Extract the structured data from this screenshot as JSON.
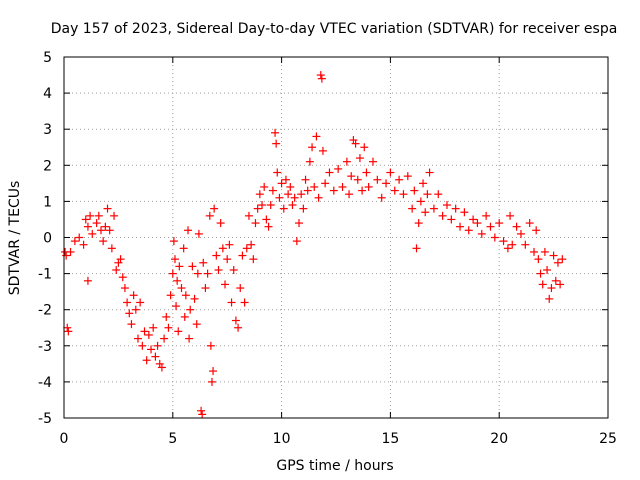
{
  "chart_data": {
    "type": "scatter",
    "title": "Day 157 of 2023, Sidereal Day-to-day VTEC variation (SDTVAR) for receiver espa",
    "xlabel": "GPS time / hours",
    "ylabel": "SDTVAR / TECUs",
    "xlim": [
      0,
      25
    ],
    "ylim": [
      -5,
      5
    ],
    "x_ticks": [
      0,
      5,
      10,
      15,
      20,
      25
    ],
    "y_ticks": [
      -5,
      -4,
      -3,
      -2,
      -1,
      0,
      1,
      2,
      3,
      4,
      5
    ],
    "x_tick_labels": [
      "0",
      "5",
      "10",
      "15",
      "20",
      "25"
    ],
    "y_tick_labels": [
      "-5",
      "-4",
      "-3",
      "-2",
      "-1",
      "0",
      "1",
      "2",
      "3",
      "4",
      "5"
    ],
    "grid": true,
    "marker": "+",
    "series": [
      {
        "name": "SDTVAR",
        "color": "#ff0000",
        "points": [
          [
            0.05,
            -0.4
          ],
          [
            0.1,
            -0.5
          ],
          [
            0.15,
            -2.5
          ],
          [
            0.2,
            -2.6
          ],
          [
            0.3,
            -0.4
          ],
          [
            0.5,
            -0.1
          ],
          [
            0.7,
            0.0
          ],
          [
            0.9,
            -0.2
          ],
          [
            1.0,
            0.5
          ],
          [
            1.1,
            0.3
          ],
          [
            1.1,
            -1.2
          ],
          [
            1.2,
            0.6
          ],
          [
            1.3,
            0.1
          ],
          [
            1.5,
            0.4
          ],
          [
            1.6,
            0.6
          ],
          [
            1.7,
            0.2
          ],
          [
            1.8,
            -0.1
          ],
          [
            1.9,
            0.3
          ],
          [
            2.0,
            0.8
          ],
          [
            2.1,
            0.2
          ],
          [
            2.2,
            -0.3
          ],
          [
            2.3,
            0.6
          ],
          [
            2.4,
            -0.9
          ],
          [
            2.5,
            -0.7
          ],
          [
            2.6,
            -0.6
          ],
          [
            2.7,
            -1.1
          ],
          [
            2.8,
            -1.4
          ],
          [
            2.9,
            -1.8
          ],
          [
            3.0,
            -2.1
          ],
          [
            3.1,
            -2.4
          ],
          [
            3.2,
            -1.6
          ],
          [
            3.3,
            -2.0
          ],
          [
            3.4,
            -2.8
          ],
          [
            3.5,
            -1.8
          ],
          [
            3.6,
            -3.0
          ],
          [
            3.7,
            -2.6
          ],
          [
            3.8,
            -3.4
          ],
          [
            3.9,
            -2.7
          ],
          [
            4.0,
            -3.1
          ],
          [
            4.1,
            -2.5
          ],
          [
            4.2,
            -3.3
          ],
          [
            4.3,
            -3.0
          ],
          [
            4.4,
            -3.5
          ],
          [
            4.5,
            -3.6
          ],
          [
            4.6,
            -2.8
          ],
          [
            4.7,
            -2.2
          ],
          [
            4.8,
            -2.5
          ],
          [
            4.9,
            -1.6
          ],
          [
            5.0,
            -1.0
          ],
          [
            5.05,
            -0.1
          ],
          [
            5.1,
            -0.6
          ],
          [
            5.15,
            -1.9
          ],
          [
            5.2,
            -1.2
          ],
          [
            5.25,
            -2.6
          ],
          [
            5.3,
            -0.8
          ],
          [
            5.4,
            -1.4
          ],
          [
            5.5,
            -0.3
          ],
          [
            5.55,
            -2.2
          ],
          [
            5.6,
            -1.6
          ],
          [
            5.7,
            0.2
          ],
          [
            5.75,
            -2.8
          ],
          [
            5.8,
            -2.0
          ],
          [
            5.9,
            -0.8
          ],
          [
            6.0,
            -1.7
          ],
          [
            6.1,
            -2.4
          ],
          [
            6.15,
            -1.0
          ],
          [
            6.2,
            0.1
          ],
          [
            6.3,
            -4.8
          ],
          [
            6.35,
            -4.9
          ],
          [
            6.4,
            -0.7
          ],
          [
            6.5,
            -1.4
          ],
          [
            6.6,
            -1.0
          ],
          [
            6.7,
            0.6
          ],
          [
            6.75,
            -3.0
          ],
          [
            6.8,
            -4.0
          ],
          [
            6.85,
            -3.7
          ],
          [
            6.9,
            0.8
          ],
          [
            7.0,
            -0.5
          ],
          [
            7.1,
            -0.9
          ],
          [
            7.2,
            0.4
          ],
          [
            7.3,
            -0.3
          ],
          [
            7.4,
            -1.3
          ],
          [
            7.5,
            -0.6
          ],
          [
            7.6,
            -0.2
          ],
          [
            7.7,
            -1.8
          ],
          [
            7.8,
            -0.9
          ],
          [
            7.9,
            -2.3
          ],
          [
            8.0,
            -2.5
          ],
          [
            8.1,
            -1.4
          ],
          [
            8.2,
            -0.5
          ],
          [
            8.3,
            -1.8
          ],
          [
            8.4,
            -0.3
          ],
          [
            8.5,
            0.6
          ],
          [
            8.6,
            -0.2
          ],
          [
            8.7,
            -0.6
          ],
          [
            8.8,
            0.4
          ],
          [
            8.9,
            0.8
          ],
          [
            9.0,
            1.2
          ],
          [
            9.1,
            0.9
          ],
          [
            9.2,
            1.4
          ],
          [
            9.3,
            0.5
          ],
          [
            9.4,
            0.3
          ],
          [
            9.5,
            0.9
          ],
          [
            9.6,
            1.3
          ],
          [
            9.7,
            2.9
          ],
          [
            9.75,
            2.6
          ],
          [
            9.8,
            1.8
          ],
          [
            9.9,
            1.1
          ],
          [
            10.0,
            1.5
          ],
          [
            10.1,
            0.8
          ],
          [
            10.2,
            1.6
          ],
          [
            10.3,
            1.2
          ],
          [
            10.4,
            1.4
          ],
          [
            10.5,
            0.9
          ],
          [
            10.6,
            1.1
          ],
          [
            10.7,
            -0.1
          ],
          [
            10.8,
            0.4
          ],
          [
            10.9,
            1.2
          ],
          [
            11.0,
            0.8
          ],
          [
            11.1,
            1.6
          ],
          [
            11.2,
            1.3
          ],
          [
            11.3,
            2.1
          ],
          [
            11.4,
            2.5
          ],
          [
            11.5,
            1.4
          ],
          [
            11.6,
            2.8
          ],
          [
            11.7,
            1.1
          ],
          [
            11.8,
            4.5
          ],
          [
            11.85,
            4.4
          ],
          [
            11.9,
            2.4
          ],
          [
            12.0,
            1.5
          ],
          [
            12.2,
            1.8
          ],
          [
            12.4,
            1.3
          ],
          [
            12.6,
            1.9
          ],
          [
            12.8,
            1.4
          ],
          [
            13.0,
            2.1
          ],
          [
            13.1,
            1.2
          ],
          [
            13.2,
            1.7
          ],
          [
            13.3,
            2.7
          ],
          [
            13.4,
            2.6
          ],
          [
            13.5,
            1.6
          ],
          [
            13.6,
            2.2
          ],
          [
            13.7,
            1.3
          ],
          [
            13.8,
            2.5
          ],
          [
            13.9,
            1.8
          ],
          [
            14.0,
            1.4
          ],
          [
            14.2,
            2.1
          ],
          [
            14.4,
            1.6
          ],
          [
            14.6,
            1.1
          ],
          [
            14.8,
            1.5
          ],
          [
            15.0,
            1.8
          ],
          [
            15.2,
            1.3
          ],
          [
            15.4,
            1.6
          ],
          [
            15.6,
            1.2
          ],
          [
            15.8,
            1.7
          ],
          [
            16.0,
            0.8
          ],
          [
            16.1,
            1.3
          ],
          [
            16.2,
            -0.3
          ],
          [
            16.3,
            0.4
          ],
          [
            16.4,
            1.0
          ],
          [
            16.5,
            1.5
          ],
          [
            16.6,
            0.7
          ],
          [
            16.7,
            1.2
          ],
          [
            16.8,
            1.8
          ],
          [
            17.0,
            0.8
          ],
          [
            17.2,
            1.2
          ],
          [
            17.4,
            0.6
          ],
          [
            17.6,
            0.9
          ],
          [
            17.8,
            0.5
          ],
          [
            18.0,
            0.8
          ],
          [
            18.2,
            0.3
          ],
          [
            18.4,
            0.7
          ],
          [
            18.6,
            0.2
          ],
          [
            18.8,
            0.5
          ],
          [
            19.0,
            0.4
          ],
          [
            19.2,
            0.1
          ],
          [
            19.4,
            0.6
          ],
          [
            19.6,
            0.3
          ],
          [
            19.8,
            0.0
          ],
          [
            20.0,
            0.4
          ],
          [
            20.2,
            -0.1
          ],
          [
            20.4,
            -0.3
          ],
          [
            20.5,
            0.6
          ],
          [
            20.6,
            -0.2
          ],
          [
            20.8,
            0.3
          ],
          [
            21.0,
            0.1
          ],
          [
            21.2,
            -0.2
          ],
          [
            21.4,
            0.4
          ],
          [
            21.6,
            -0.4
          ],
          [
            21.7,
            0.2
          ],
          [
            21.8,
            -0.6
          ],
          [
            21.9,
            -1.0
          ],
          [
            22.0,
            -1.3
          ],
          [
            22.1,
            -0.4
          ],
          [
            22.2,
            -0.9
          ],
          [
            22.3,
            -1.7
          ],
          [
            22.4,
            -1.4
          ],
          [
            22.5,
            -0.5
          ],
          [
            22.6,
            -1.2
          ],
          [
            22.7,
            -0.7
          ],
          [
            22.8,
            -1.3
          ],
          [
            22.9,
            -0.6
          ]
        ]
      }
    ]
  }
}
